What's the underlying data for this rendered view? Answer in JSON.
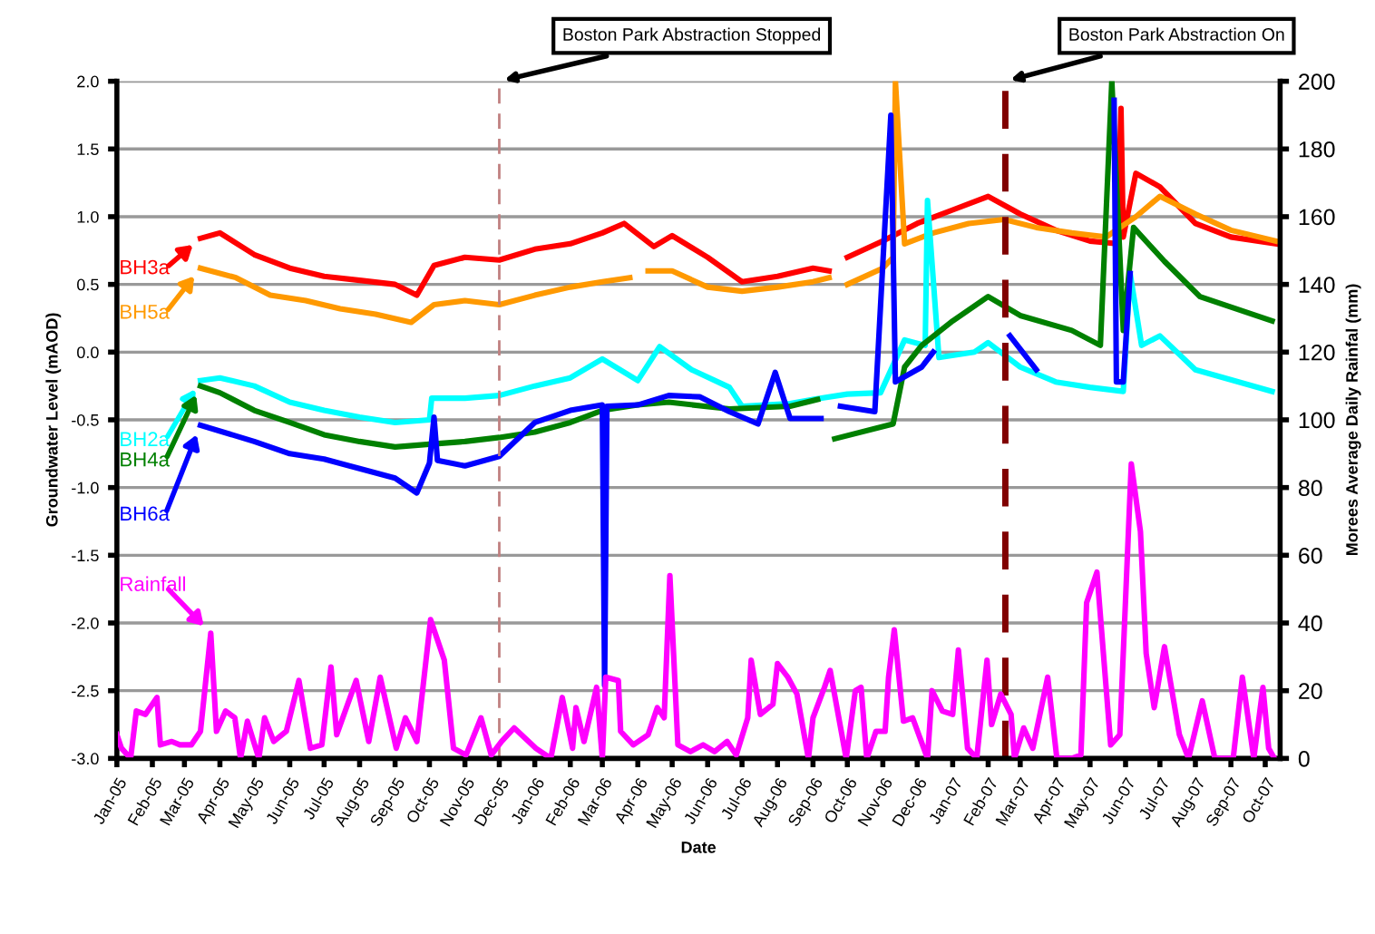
{
  "chart_data": {
    "type": "line",
    "xlabel": "Date",
    "ylabel": "Groundwater Level (mAOD)",
    "y2label": "Morees Average Daily Rainfal (mm)",
    "xlim": [
      "2005-01-01",
      "2007-10-14"
    ],
    "xticks": [
      {
        "value": "2005-01-01",
        "label": "Jan-05"
      },
      {
        "value": "2005-02-01",
        "label": "Feb-05"
      },
      {
        "value": "2005-03-01",
        "label": "Mar-05"
      },
      {
        "value": "2005-04-01",
        "label": "Apr-05"
      },
      {
        "value": "2005-05-01",
        "label": "May-05"
      },
      {
        "value": "2005-06-01",
        "label": "Jun-05"
      },
      {
        "value": "2005-07-01",
        "label": "Jul-05"
      },
      {
        "value": "2005-08-01",
        "label": "Aug-05"
      },
      {
        "value": "2005-09-01",
        "label": "Sep-05"
      },
      {
        "value": "2005-10-01",
        "label": "Oct-05"
      },
      {
        "value": "2005-11-01",
        "label": "Nov-05"
      },
      {
        "value": "2005-12-01",
        "label": "Dec-05"
      },
      {
        "value": "2006-01-01",
        "label": "Jan-06"
      },
      {
        "value": "2006-02-01",
        "label": "Feb-06"
      },
      {
        "value": "2006-03-01",
        "label": "Mar-06"
      },
      {
        "value": "2006-04-01",
        "label": "Apr-06"
      },
      {
        "value": "2006-05-01",
        "label": "May-06"
      },
      {
        "value": "2006-06-01",
        "label": "Jun-06"
      },
      {
        "value": "2006-07-01",
        "label": "Jul-06"
      },
      {
        "value": "2006-08-01",
        "label": "Aug-06"
      },
      {
        "value": "2006-09-01",
        "label": "Sep-06"
      },
      {
        "value": "2006-10-01",
        "label": "Oct-06"
      },
      {
        "value": "2006-11-01",
        "label": "Nov-06"
      },
      {
        "value": "2006-12-01",
        "label": "Dec-06"
      },
      {
        "value": "2007-01-01",
        "label": "Jan-07"
      },
      {
        "value": "2007-02-01",
        "label": "Feb-07"
      },
      {
        "value": "2007-03-01",
        "label": "Mar-07"
      },
      {
        "value": "2007-04-01",
        "label": "Apr-07"
      },
      {
        "value": "2007-05-01",
        "label": "May-07"
      },
      {
        "value": "2007-06-01",
        "label": "Jun-07"
      },
      {
        "value": "2007-07-01",
        "label": "Jul-07"
      },
      {
        "value": "2007-08-01",
        "label": "Aug-07"
      },
      {
        "value": "2007-09-01",
        "label": "Sep-07"
      },
      {
        "value": "2007-10-01",
        "label": "Oct-07"
      }
    ],
    "ylim": [
      -3.0,
      2.0
    ],
    "yticks": [
      {
        "value": -3.0,
        "label": "-3.0"
      },
      {
        "value": -2.5,
        "label": "-2.5"
      },
      {
        "value": -2.0,
        "label": "-2.0"
      },
      {
        "value": -1.5,
        "label": "-1.5"
      },
      {
        "value": -1.0,
        "label": "-1.0"
      },
      {
        "value": -0.5,
        "label": "-0.5"
      },
      {
        "value": 0.0,
        "label": "0.0"
      },
      {
        "value": 0.5,
        "label": "0.5"
      },
      {
        "value": 1.0,
        "label": "1.0"
      },
      {
        "value": 1.5,
        "label": "1.5"
      },
      {
        "value": 2.0,
        "label": "2.0"
      }
    ],
    "y2lim": [
      0,
      200
    ],
    "y2ticks": [
      0,
      20,
      40,
      60,
      80,
      100,
      120,
      140,
      160,
      180,
      200
    ],
    "grid": "y",
    "legend": "left",
    "marker": "none",
    "line_style": "solid",
    "ref_lines": [
      {
        "axis": "x",
        "value": "2005-12-01",
        "label": "Boston Park Abstraction Stopped",
        "color": "#c08080",
        "line_style": "dashed"
      },
      {
        "axis": "x",
        "value": "2007-02-16",
        "label": "Boston Park Abstraction On",
        "color": "#800000",
        "line_style": "dashed"
      }
    ],
    "series": [
      {
        "name": "BH3a",
        "color": "#ff0000",
        "x": [
          "2005-03-15",
          "2005-04-01",
          "2005-05-01",
          "2005-06-01",
          "2005-07-01",
          "2005-08-01",
          "2005-09-01",
          "2005-09-20",
          "2005-10-05",
          "2005-11-01",
          "2005-12-01",
          "2006-01-01",
          "2006-02-01",
          "2006-03-01",
          "2006-03-20",
          "2006-04-15",
          "2006-05-01",
          "2006-06-01",
          "2006-07-01",
          "2006-08-01",
          "2006-09-01",
          "2006-09-15",
          "2006-09-22",
          "2006-10-01",
          "2006-11-01",
          "2006-12-01",
          "2007-01-01",
          "2007-02-01",
          "2007-03-01",
          "2007-04-01",
          "2007-05-01",
          "2007-05-25",
          "2007-05-28",
          "2007-05-30",
          "2007-06-10",
          "2007-07-01",
          "2007-08-01",
          "2007-09-01",
          "2007-10-10"
        ],
        "values": [
          0.84,
          0.88,
          0.72,
          0.62,
          0.56,
          0.53,
          0.5,
          0.42,
          0.64,
          0.7,
          0.68,
          0.76,
          0.8,
          0.88,
          0.95,
          0.78,
          0.86,
          0.7,
          0.52,
          0.56,
          0.62,
          0.6,
          null,
          0.7,
          0.82,
          0.95,
          1.05,
          1.15,
          1.02,
          0.9,
          0.82,
          0.8,
          1.8,
          0.85,
          1.32,
          1.22,
          0.95,
          0.85,
          0.8
        ]
      },
      {
        "name": "BH5a",
        "color": "#ff9900",
        "x": [
          "2005-03-15",
          "2005-04-15",
          "2005-05-15",
          "2005-06-15",
          "2005-07-15",
          "2005-08-15",
          "2005-09-15",
          "2005-10-05",
          "2005-11-01",
          "2005-12-01",
          "2006-01-01",
          "2006-02-01",
          "2006-03-01",
          "2006-03-25",
          "2006-04-01",
          "2006-04-10",
          "2006-05-01",
          "2006-06-01",
          "2006-07-01",
          "2006-08-01",
          "2006-09-01",
          "2006-09-15",
          "2006-09-22",
          "2006-10-01",
          "2006-11-01",
          "2006-11-10",
          "2006-11-12",
          "2006-11-20",
          "2006-12-15",
          "2007-01-15",
          "2007-02-15",
          "2007-03-15",
          "2007-04-15",
          "2007-05-15",
          "2007-06-10",
          "2007-07-01",
          "2007-08-01",
          "2007-09-01",
          "2007-10-10"
        ],
        "values": [
          0.62,
          0.55,
          0.42,
          0.38,
          0.32,
          0.28,
          0.22,
          0.35,
          0.38,
          0.35,
          0.42,
          0.48,
          0.52,
          0.55,
          null,
          0.6,
          0.6,
          0.48,
          0.45,
          0.48,
          0.52,
          0.55,
          null,
          0.5,
          0.62,
          0.7,
          2.0,
          0.8,
          0.88,
          0.95,
          0.98,
          0.92,
          0.88,
          0.85,
          1.0,
          1.15,
          1.02,
          0.9,
          0.82
        ]
      },
      {
        "name": "BH2a",
        "color": "#00ffff",
        "x": [
          "2005-03-15",
          "2005-04-01",
          "2005-05-01",
          "2005-06-01",
          "2005-07-01",
          "2005-08-01",
          "2005-09-01",
          "2005-10-01",
          "2005-10-03",
          "2005-11-01",
          "2005-12-01",
          "2006-01-01",
          "2006-02-01",
          "2006-03-01",
          "2006-04-01",
          "2006-04-20",
          "2006-05-18",
          "2006-06-20",
          "2006-07-01",
          "2006-08-12",
          "2006-09-01",
          "2006-10-01",
          "2006-10-30",
          "2006-11-20",
          "2006-12-08",
          "2006-12-10",
          "2006-12-20",
          "2007-01-20",
          "2007-02-01",
          "2007-03-01",
          "2007-04-01",
          "2007-05-01",
          "2007-05-30",
          "2007-06-05",
          "2007-06-15",
          "2007-07-01",
          "2007-08-01",
          "2007-10-07"
        ],
        "values": [
          -0.21,
          -0.19,
          -0.25,
          -0.37,
          -0.43,
          -0.48,
          -0.52,
          -0.5,
          -0.34,
          -0.34,
          -0.32,
          -0.25,
          -0.19,
          -0.05,
          -0.21,
          0.04,
          -0.13,
          -0.26,
          -0.4,
          -0.38,
          -0.35,
          -0.31,
          -0.3,
          0.09,
          0.05,
          1.12,
          -0.04,
          0.0,
          0.07,
          -0.11,
          -0.22,
          -0.26,
          -0.29,
          0.58,
          0.05,
          0.12,
          -0.13,
          -0.29
        ]
      },
      {
        "name": "BH4a",
        "color": "#008000",
        "x": [
          "2005-03-15",
          "2005-04-01",
          "2005-05-01",
          "2005-06-01",
          "2005-07-01",
          "2005-08-01",
          "2005-09-01",
          "2005-10-01",
          "2005-11-01",
          "2005-12-01",
          "2006-01-01",
          "2006-02-01",
          "2006-03-01",
          "2006-04-01",
          "2006-04-28",
          "2006-06-20",
          "2006-08-12",
          "2006-09-05",
          "2006-09-12",
          "2006-09-20",
          "2006-11-10",
          "2006-11-20",
          "2006-12-05",
          "2007-01-01",
          "2007-02-01",
          "2007-03-01",
          "2007-04-15",
          "2007-05-10",
          "2007-05-20",
          "2007-05-30",
          "2007-06-08",
          "2007-07-05",
          "2007-08-05",
          "2007-10-07"
        ],
        "values": [
          -0.25,
          -0.3,
          -0.43,
          -0.52,
          -0.61,
          -0.66,
          -0.7,
          -0.68,
          -0.66,
          -0.63,
          -0.59,
          -0.52,
          -0.43,
          -0.39,
          -0.37,
          -0.42,
          -0.4,
          -0.35,
          null,
          -0.64,
          -0.53,
          -0.11,
          0.05,
          0.23,
          0.41,
          0.27,
          0.16,
          0.05,
          2.0,
          0.16,
          0.92,
          0.67,
          0.41,
          0.23
        ]
      },
      {
        "name": "BH6a",
        "color": "#0000ff",
        "x": [
          "2005-03-15",
          "2005-05-01",
          "2005-06-01",
          "2005-07-01",
          "2005-08-01",
          "2005-09-01",
          "2005-09-20",
          "2005-10-01",
          "2005-10-05",
          "2005-10-08",
          "2005-11-01",
          "2005-12-01",
          "2006-01-01",
          "2006-02-01",
          "2006-03-01",
          "2006-03-03",
          "2006-03-05",
          "2006-04-01",
          "2006-04-28",
          "2006-05-25",
          "2006-06-20",
          "2006-07-15",
          "2006-07-30",
          "2006-08-12",
          "2006-09-08",
          "2006-09-15",
          "2006-09-25",
          "2006-10-25",
          "2006-11-08",
          "2006-11-12",
          "2006-12-05",
          "2006-12-15",
          "2007-01-15",
          "2007-02-20",
          "2007-03-15",
          "2007-04-15",
          "2007-05-22",
          "2007-05-24",
          "2007-05-30",
          "2007-06-05"
        ],
        "values": [
          -0.54,
          -0.66,
          -0.75,
          -0.79,
          -0.86,
          -0.93,
          -1.04,
          -0.82,
          -0.48,
          -0.8,
          -0.84,
          -0.77,
          -0.52,
          -0.43,
          -0.39,
          -2.46,
          -0.4,
          -0.39,
          -0.32,
          -0.33,
          -0.44,
          -0.53,
          -0.15,
          -0.49,
          -0.49,
          null,
          -0.4,
          -0.44,
          1.75,
          -0.22,
          -0.11,
          0.0,
          null,
          0.12,
          -0.13,
          null,
          1.86,
          -0.22,
          -0.22,
          0.58
        ]
      },
      {
        "name": "Rainfall",
        "color": "#ff00ff",
        "axis": "y2",
        "x": [
          "2005-01-01",
          "2005-01-05",
          "2005-01-13",
          "2005-01-18",
          "2005-01-26",
          "2005-02-05",
          "2005-02-08",
          "2005-02-18",
          "2005-02-25",
          "2005-03-07",
          "2005-03-15",
          "2005-03-24",
          "2005-03-29",
          "2005-04-06",
          "2005-04-14",
          "2005-04-19",
          "2005-04-25",
          "2005-05-05",
          "2005-05-10",
          "2005-05-18",
          "2005-05-29",
          "2005-06-09",
          "2005-06-19",
          "2005-06-29",
          "2005-07-07",
          "2005-07-12",
          "2005-07-29",
          "2005-08-09",
          "2005-08-19",
          "2005-09-02",
          "2005-09-10",
          "2005-09-20",
          "2005-10-02",
          "2005-10-14",
          "2005-10-22",
          "2005-11-02",
          "2005-11-15",
          "2005-11-24",
          "2005-12-03",
          "2005-12-14",
          "2006-01-02",
          "2006-01-15",
          "2006-01-25",
          "2006-02-03",
          "2006-02-06",
          "2006-02-13",
          "2006-02-24",
          "2006-03-01",
          "2006-03-04",
          "2006-03-15",
          "2006-03-17",
          "2006-03-28",
          "2006-04-10",
          "2006-04-18",
          "2006-04-24",
          "2006-04-29",
          "2006-05-06",
          "2006-05-17",
          "2006-05-28",
          "2006-06-07",
          "2006-06-18",
          "2006-06-26",
          "2006-07-06",
          "2006-07-09",
          "2006-07-17",
          "2006-07-28",
          "2006-08-01",
          "2006-08-10",
          "2006-08-18",
          "2006-08-28",
          "2006-09-01",
          "2006-09-11",
          "2006-09-16",
          "2006-09-30",
          "2006-10-08",
          "2006-10-13",
          "2006-10-18",
          "2006-10-26",
          "2006-11-03",
          "2006-11-06",
          "2006-11-11",
          "2006-11-19",
          "2006-11-27",
          "2006-12-10",
          "2006-12-14",
          "2006-12-23",
          "2007-01-01",
          "2007-01-06",
          "2007-01-14",
          "2007-01-22",
          "2007-01-31",
          "2007-02-04",
          "2007-02-12",
          "2007-02-21",
          "2007-02-24",
          "2007-03-04",
          "2007-03-12",
          "2007-03-25",
          "2007-04-02",
          "2007-04-15",
          "2007-04-23",
          "2007-04-28",
          "2007-05-07",
          "2007-05-19",
          "2007-05-27",
          "2007-06-06",
          "2007-06-14",
          "2007-06-19",
          "2007-06-26",
          "2007-07-05",
          "2007-07-18",
          "2007-07-26",
          "2007-08-07",
          "2007-08-18",
          "2007-09-03",
          "2007-09-11",
          "2007-09-21",
          "2007-09-29",
          "2007-10-04",
          "2007-10-09"
        ],
        "values": [
          7,
          3,
          0,
          14,
          13,
          18,
          4,
          5,
          4,
          4,
          8,
          37,
          8,
          14,
          12,
          0,
          11,
          0,
          12,
          5,
          8,
          23,
          3,
          4,
          27,
          7,
          23,
          5,
          24,
          3,
          12,
          5,
          41,
          29,
          3,
          1,
          12,
          1,
          5,
          9,
          3,
          0,
          18,
          3,
          15,
          5,
          21,
          0,
          24,
          23,
          8,
          4,
          7,
          15,
          12,
          54,
          4,
          2,
          4,
          2,
          5,
          1,
          12,
          29,
          13,
          16,
          28,
          24,
          19,
          0,
          12,
          21,
          26,
          0,
          20,
          21,
          0,
          8,
          8,
          24,
          38,
          11,
          12,
          0,
          20,
          14,
          13,
          32,
          3,
          0,
          29,
          10,
          19,
          13,
          0,
          9,
          3,
          24,
          0,
          0,
          1,
          46,
          55,
          4,
          7,
          87,
          67,
          31,
          15,
          33,
          7,
          0,
          17,
          0,
          0,
          24,
          0,
          21,
          3,
          0
        ]
      }
    ]
  }
}
